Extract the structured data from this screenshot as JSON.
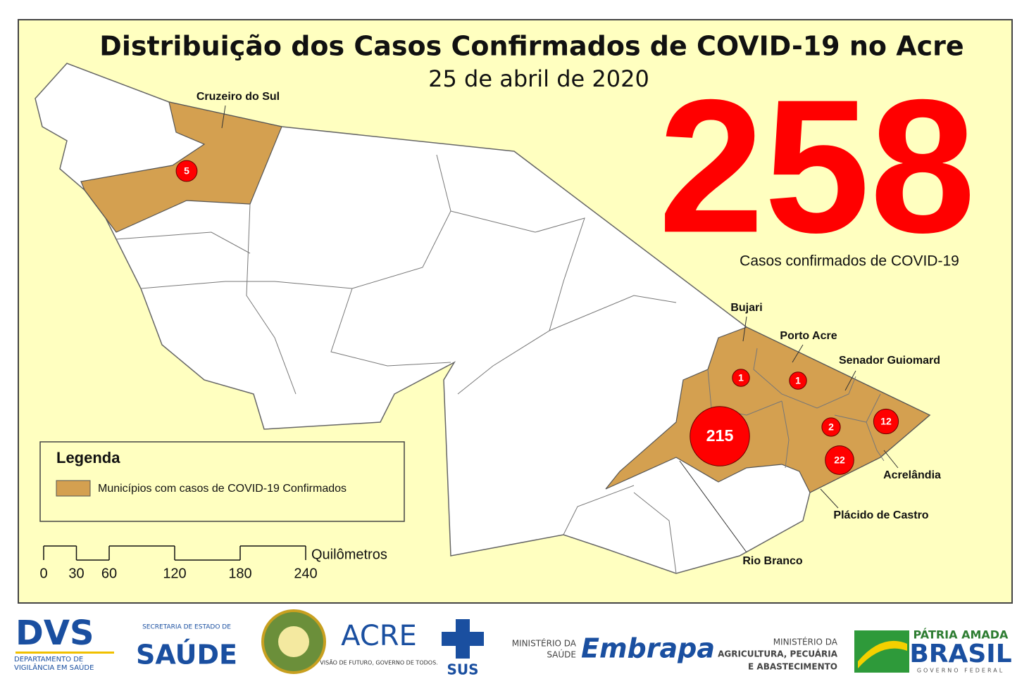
{
  "title": "Distribuição dos Casos Confirmados de COVID-19 no Acre",
  "date": "25 de abril de 2020",
  "total": {
    "value": 258,
    "label": "Casos confirmados de COVID-19"
  },
  "municipalities": [
    {
      "name": "Cruzeiro do Sul",
      "cases": 5
    },
    {
      "name": "Bujari",
      "cases": 1
    },
    {
      "name": "Porto Acre",
      "cases": 1
    },
    {
      "name": "Rio Branco",
      "cases": 215
    },
    {
      "name": "Senador Guiomard",
      "cases": 2
    },
    {
      "name": "Acrelândia",
      "cases": 12
    },
    {
      "name": "Plácido de Castro",
      "cases": 22
    }
  ],
  "legend": {
    "title": "Legenda",
    "item": "Municípios com casos de COVID-19 Confirmados"
  },
  "scale_bar": {
    "unit": "Quilômetros",
    "ticks": [
      0,
      30,
      60,
      120,
      180,
      240
    ]
  },
  "logos": {
    "dvs": {
      "name": "DVS",
      "subtitle": "DEPARTAMENTO DE VIGILÂNCIA EM SAÚDE"
    },
    "sesacre": {
      "top": "SECRETARIA DE ESTADO DE",
      "name": "SAÚDE"
    },
    "acre": {
      "name": "ACRE",
      "slogan": "VISÃO DE FUTURO, GOVERNO DE TODOS."
    },
    "sus": {
      "name": "SUS"
    },
    "ministerio_saude": {
      "line1": "MINISTÉRIO DA",
      "line2": "SAÚDE"
    },
    "embrapa": {
      "name": "Embrapa"
    },
    "mapa": {
      "line1": "MINISTÉRIO DA",
      "line2": "AGRICULTURA, PECUÁRIA",
      "line3": "E ABASTECIMENTO"
    },
    "brasil": {
      "top": "PÁTRIA AMADA",
      "name": "BRASIL",
      "bottom": "GOVERNO FEDERAL"
    }
  }
}
